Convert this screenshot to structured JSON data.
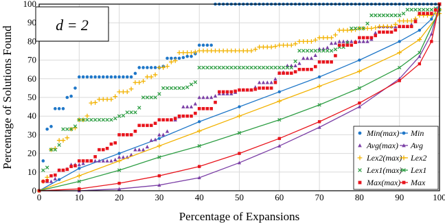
{
  "chart_data": {
    "type": "line",
    "xlabel": "Percentage of Expansions",
    "ylabel": "Percentage of Solutions Found",
    "xlim": [
      0,
      100
    ],
    "ylim": [
      0,
      100
    ],
    "xticks": [
      "0",
      "10",
      "20",
      "30",
      "40",
      "50",
      "60",
      "70",
      "80",
      "90",
      "100"
    ],
    "yticks": [
      "0",
      "10",
      "20",
      "30",
      "40",
      "50",
      "60",
      "70",
      "80",
      "90",
      "100"
    ],
    "grid": true,
    "legend_placement": "bottom-right",
    "annotation": "d = 2",
    "series": [
      {
        "name": "Min(max)",
        "color": "#1f77c8",
        "marker": "circle",
        "style": "markers",
        "points": [
          [
            1,
            16
          ],
          [
            2,
            33
          ],
          [
            4,
            44
          ],
          [
            6,
            44
          ],
          [
            7,
            50
          ],
          [
            9,
            55
          ],
          [
            10,
            61
          ],
          [
            14,
            61
          ],
          [
            20,
            61
          ],
          [
            25,
            66
          ],
          [
            30,
            66
          ],
          [
            32,
            71
          ],
          [
            37,
            72
          ],
          [
            40,
            78
          ],
          [
            43,
            78
          ],
          [
            44,
            100
          ],
          [
            60,
            100
          ],
          [
            80,
            100
          ],
          [
            100,
            100
          ]
        ]
      },
      {
        "name": "Min",
        "color": "#1f77c8",
        "marker": "circle",
        "style": "line",
        "points": [
          [
            0,
            0
          ],
          [
            5,
            6
          ],
          [
            10,
            12
          ],
          [
            20,
            20
          ],
          [
            30,
            28
          ],
          [
            40,
            37
          ],
          [
            50,
            45
          ],
          [
            60,
            53
          ],
          [
            70,
            61
          ],
          [
            80,
            70
          ],
          [
            90,
            80
          ],
          [
            95,
            86
          ],
          [
            98,
            92
          ],
          [
            100,
            100
          ]
        ]
      },
      {
        "name": "Avg(max)",
        "color": "#7b3fa6",
        "marker": "triangle",
        "style": "markers",
        "points": [
          [
            2,
            5
          ],
          [
            5,
            11
          ],
          [
            8,
            14
          ],
          [
            12,
            16
          ],
          [
            16,
            16
          ],
          [
            20,
            18
          ],
          [
            24,
            22
          ],
          [
            28,
            27
          ],
          [
            30,
            30
          ],
          [
            33,
            38
          ],
          [
            36,
            45
          ],
          [
            40,
            50
          ],
          [
            45,
            52
          ],
          [
            50,
            54
          ],
          [
            55,
            58
          ],
          [
            60,
            63
          ],
          [
            62,
            67
          ],
          [
            66,
            71
          ],
          [
            70,
            76
          ],
          [
            73,
            79
          ],
          [
            75,
            80
          ],
          [
            85,
            88
          ],
          [
            95,
            95
          ],
          [
            100,
            100
          ]
        ]
      },
      {
        "name": "Avg",
        "color": "#7b3fa6",
        "marker": "triangle",
        "style": "line",
        "points": [
          [
            0,
            0
          ],
          [
            10,
            0
          ],
          [
            20,
            1
          ],
          [
            30,
            3
          ],
          [
            40,
            7
          ],
          [
            50,
            15
          ],
          [
            60,
            24
          ],
          [
            70,
            34
          ],
          [
            80,
            45
          ],
          [
            90,
            60
          ],
          [
            95,
            72
          ],
          [
            98,
            84
          ],
          [
            100,
            100
          ]
        ]
      },
      {
        "name": "Lex2(max)",
        "color": "#f2b200",
        "marker": "plus",
        "style": "markers",
        "points": [
          [
            1,
            5
          ],
          [
            3,
            22
          ],
          [
            5,
            27
          ],
          [
            8,
            33
          ],
          [
            10,
            38
          ],
          [
            13,
            47
          ],
          [
            15,
            49
          ],
          [
            20,
            53
          ],
          [
            24,
            58
          ],
          [
            27,
            61
          ],
          [
            30,
            66
          ],
          [
            33,
            69
          ],
          [
            35,
            74
          ],
          [
            40,
            75
          ],
          [
            45,
            75
          ],
          [
            50,
            75
          ],
          [
            55,
            77
          ],
          [
            60,
            78
          ],
          [
            65,
            80
          ],
          [
            70,
            82
          ],
          [
            75,
            86
          ],
          [
            80,
            87
          ],
          [
            85,
            88
          ],
          [
            90,
            91
          ],
          [
            95,
            94
          ],
          [
            100,
            97
          ]
        ]
      },
      {
        "name": "Lex2",
        "color": "#f2b200",
        "marker": "plus",
        "style": "line",
        "points": [
          [
            0,
            0
          ],
          [
            10,
            8
          ],
          [
            20,
            16
          ],
          [
            30,
            24
          ],
          [
            40,
            32
          ],
          [
            50,
            40
          ],
          [
            60,
            48
          ],
          [
            70,
            56
          ],
          [
            80,
            64
          ],
          [
            90,
            74
          ],
          [
            95,
            81
          ],
          [
            100,
            95
          ]
        ]
      },
      {
        "name": "Lex1(max)",
        "color": "#2e9e44",
        "marker": "x",
        "style": "markers",
        "points": [
          [
            1,
            11
          ],
          [
            3,
            22
          ],
          [
            6,
            33
          ],
          [
            10,
            38
          ],
          [
            15,
            38
          ],
          [
            20,
            40
          ],
          [
            22,
            42
          ],
          [
            26,
            50
          ],
          [
            31,
            55
          ],
          [
            35,
            55
          ],
          [
            38,
            57
          ],
          [
            40,
            66
          ],
          [
            50,
            66
          ],
          [
            60,
            66
          ],
          [
            65,
            75
          ],
          [
            70,
            75
          ],
          [
            75,
            77
          ],
          [
            78,
            87
          ],
          [
            83,
            94
          ],
          [
            88,
            94
          ],
          [
            92,
            97
          ],
          [
            97,
            97
          ],
          [
            100,
            100
          ]
        ]
      },
      {
        "name": "Lex1",
        "color": "#2e9e44",
        "marker": "x",
        "style": "line",
        "points": [
          [
            0,
            0
          ],
          [
            10,
            5
          ],
          [
            20,
            11
          ],
          [
            30,
            18
          ],
          [
            40,
            24
          ],
          [
            50,
            31
          ],
          [
            60,
            38
          ],
          [
            70,
            46
          ],
          [
            80,
            55
          ],
          [
            90,
            66
          ],
          [
            95,
            74
          ],
          [
            100,
            97
          ]
        ]
      },
      {
        "name": "Max(max)",
        "color": "#e8141c",
        "marker": "square",
        "style": "markers",
        "points": [
          [
            1,
            5
          ],
          [
            3,
            8
          ],
          [
            5,
            11
          ],
          [
            8,
            13
          ],
          [
            10,
            16
          ],
          [
            15,
            22
          ],
          [
            18,
            25
          ],
          [
            20,
            30
          ],
          [
            25,
            35
          ],
          [
            30,
            38
          ],
          [
            35,
            40
          ],
          [
            40,
            44
          ],
          [
            45,
            53
          ],
          [
            50,
            54
          ],
          [
            55,
            55
          ],
          [
            60,
            63
          ],
          [
            65,
            65
          ],
          [
            70,
            69
          ],
          [
            75,
            78
          ],
          [
            80,
            82
          ],
          [
            85,
            85
          ],
          [
            90,
            88
          ],
          [
            95,
            95
          ],
          [
            100,
            100
          ]
        ]
      },
      {
        "name": "Max",
        "color": "#e8141c",
        "marker": "square",
        "style": "line",
        "points": [
          [
            0,
            0
          ],
          [
            10,
            1
          ],
          [
            20,
            4
          ],
          [
            30,
            8
          ],
          [
            40,
            13
          ],
          [
            50,
            20
          ],
          [
            60,
            28
          ],
          [
            70,
            37
          ],
          [
            80,
            47
          ],
          [
            90,
            59
          ],
          [
            95,
            68
          ],
          [
            98,
            80
          ],
          [
            100,
            100
          ]
        ]
      }
    ]
  }
}
